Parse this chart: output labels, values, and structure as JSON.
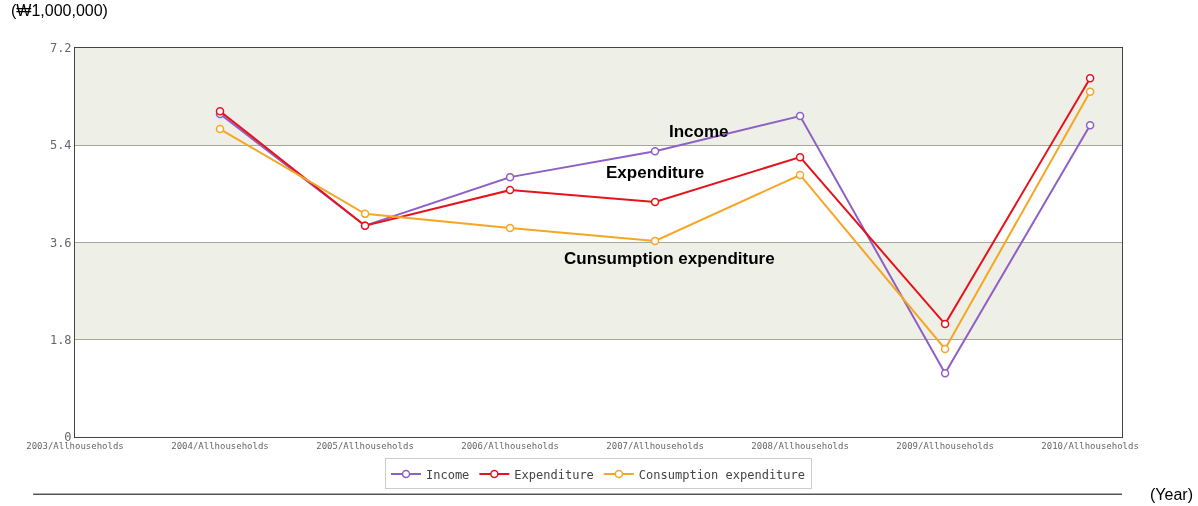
{
  "chart_data": {
    "type": "line",
    "categories": [
      "2003/Allhouseholds",
      "2004/Allhouseholds",
      "2005/Allhouseholds",
      "2006/Allhouseholds",
      "2007/Allhouseholds",
      "2008/Allhouseholds",
      "2009/Allhouseholds",
      "2010/Allhouseholds"
    ],
    "series": [
      {
        "name": "Income",
        "color": "#8e5fc4",
        "values": [
          null,
          5.98,
          3.91,
          4.81,
          5.29,
          5.94,
          1.18,
          5.77
        ]
      },
      {
        "name": "Expenditure",
        "color": "#e8121b",
        "values": [
          null,
          6.03,
          3.91,
          4.57,
          4.35,
          5.18,
          2.09,
          6.64
        ]
      },
      {
        "name": "Consumption expenditure",
        "color": "#f5a623",
        "values": [
          null,
          5.7,
          4.13,
          3.87,
          3.63,
          4.85,
          1.63,
          6.39
        ]
      }
    ],
    "ylabel": "(₩1,000,000)",
    "xlabel": "(Year)",
    "annotations": [
      "Income",
      "Expenditure",
      "Cunsumption expenditure"
    ],
    "ylim": [
      0,
      7.2
    ],
    "yticks": [
      0,
      1.8,
      3.6,
      5.4,
      7.2
    ],
    "grid": "y",
    "legend": "bottom",
    "marker": "circle",
    "line_style": "solid"
  }
}
